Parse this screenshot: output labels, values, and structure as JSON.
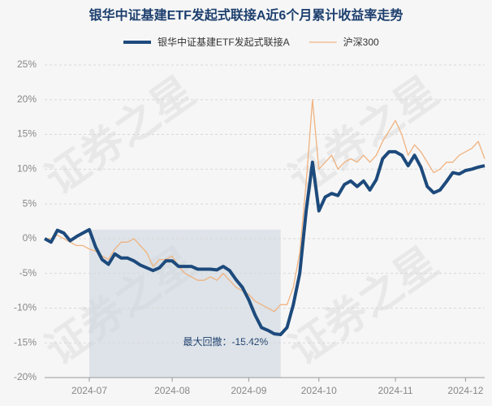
{
  "chart_data": {
    "type": "line",
    "title": "银华中证基建ETF发起式联接A近6个月累计收益率走势",
    "watermark": "证券之星",
    "annotation": "最大回撤：-15.42%",
    "categories": [
      null,
      null,
      null,
      null,
      null,
      null,
      null,
      "2024-07",
      null,
      null,
      null,
      null,
      null,
      null,
      null,
      null,
      null,
      null,
      null,
      null,
      "2024-08",
      null,
      null,
      null,
      null,
      null,
      null,
      null,
      null,
      null,
      null,
      null,
      "2024-09",
      null,
      null,
      null,
      null,
      null,
      null,
      null,
      null,
      null,
      null,
      "2024-10",
      null,
      null,
      null,
      null,
      null,
      null,
      null,
      null,
      null,
      null,
      null,
      "2024-11",
      null,
      null,
      null,
      null,
      null,
      null,
      null,
      null,
      null,
      null,
      "2024-12",
      null,
      null,
      null
    ],
    "series": [
      {
        "name": "银华中证基建ETF发起式联接A",
        "color": "#1d4a7c",
        "width": 4,
        "values": [
          0,
          -0.5,
          1.2,
          0.8,
          -0.3,
          0.3,
          0.8,
          1.3,
          -1.2,
          -3,
          -3.7,
          -2.2,
          -2.8,
          -2.8,
          -3.2,
          -3.8,
          -4.2,
          -4.6,
          -4.2,
          -3.2,
          -3.2,
          -4,
          -4,
          -4,
          -4.4,
          -4.4,
          -4.4,
          -4.5,
          -4,
          -4.6,
          -5.9,
          -7,
          -8.8,
          -11,
          -12.8,
          -13.2,
          -13.7,
          -13.8,
          -12.8,
          -9.5,
          -5,
          4,
          11,
          4,
          6,
          6.5,
          6.2,
          7.8,
          8.3,
          7.5,
          8.3,
          7,
          8.5,
          11.5,
          12.5,
          12.5,
          12,
          10.5,
          12,
          10.3,
          7.5,
          6.6,
          7,
          8.2,
          9.5,
          9.3,
          9.8,
          10,
          10.3,
          10.5
        ]
      },
      {
        "name": "沪深300",
        "color": "#f0b27f",
        "width": 1.3,
        "values": [
          0,
          0,
          0.5,
          0,
          -0.5,
          -1,
          -1,
          -1.5,
          -1.8,
          -2.5,
          -3,
          -1.5,
          -0.5,
          -0.5,
          0,
          -1,
          -2,
          -4,
          -3,
          -3,
          -2.5,
          -4,
          -5,
          -5.5,
          -6,
          -6,
          -5.5,
          -6,
          -5,
          -6,
          -7,
          -7.5,
          -8,
          -9,
          -9.5,
          -10,
          -10.5,
          -9.5,
          -9.5,
          -7,
          -2,
          8,
          20,
          10,
          11,
          12,
          10,
          11,
          11.5,
          11,
          12,
          11,
          12,
          14,
          15.5,
          17,
          15,
          12,
          13.5,
          12.5,
          11,
          9.5,
          10,
          11,
          11,
          12,
          12.5,
          13,
          14,
          11.5
        ]
      }
    ],
    "ylim": [
      -20,
      25
    ],
    "yticks": [
      {
        "value": -20,
        "label": "-20%"
      },
      {
        "value": -15,
        "label": "-15%"
      },
      {
        "value": -10,
        "label": "-10%"
      },
      {
        "value": -5,
        "label": "-5%"
      },
      {
        "value": 0,
        "label": "0%"
      },
      {
        "value": 5,
        "label": "5%"
      },
      {
        "value": 10,
        "label": "10%"
      },
      {
        "value": 15,
        "label": "15%"
      },
      {
        "value": 20,
        "label": "20%"
      },
      {
        "value": 25,
        "label": "25%"
      }
    ],
    "grid": true
  }
}
